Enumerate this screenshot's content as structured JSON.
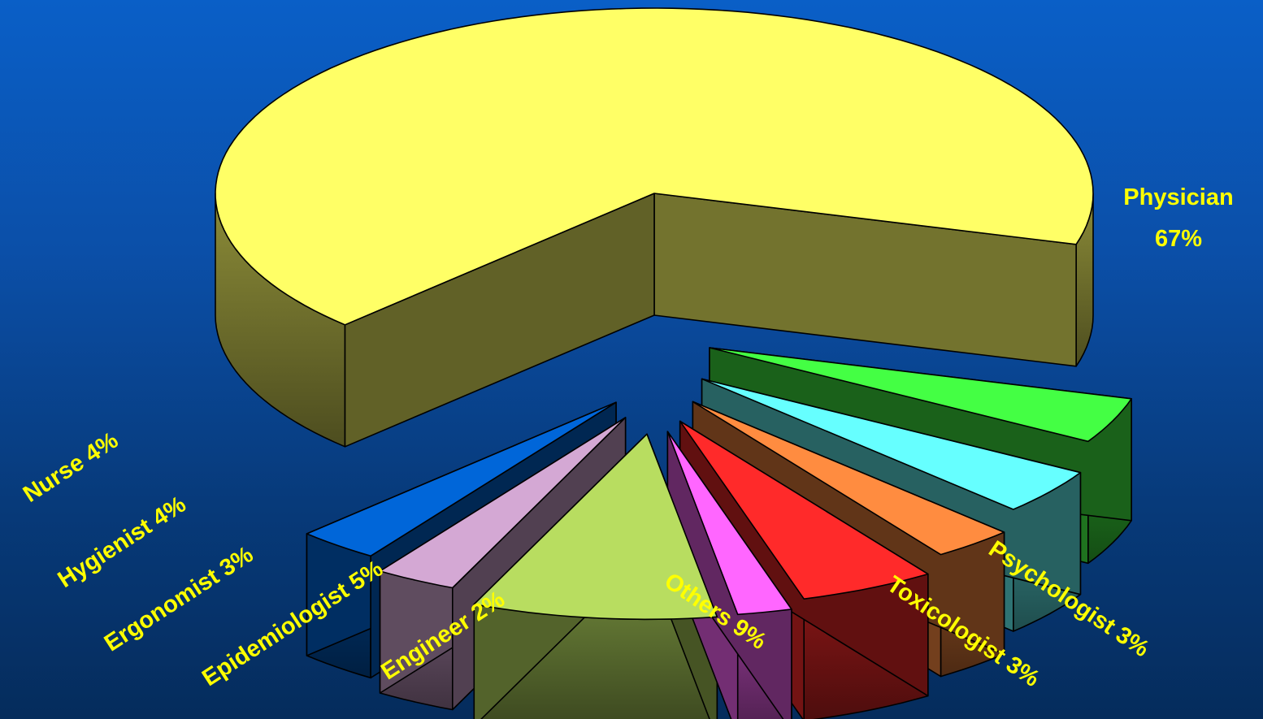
{
  "chart_data": {
    "type": "pie",
    "title": "",
    "exploded": true,
    "three_d": true,
    "slices": [
      {
        "label": "Physician",
        "value": 67,
        "pct_label": "67%",
        "color": "#ffff66"
      },
      {
        "label": "Psychologist",
        "value": 3,
        "pct_label": "3%",
        "color": "#0066d9"
      },
      {
        "label": "Toxicologist",
        "value": 3,
        "pct_label": "3%",
        "color": "#d4a8d4"
      },
      {
        "label": "Others",
        "value": 9,
        "pct_label": "9%",
        "color": "#b8dd60"
      },
      {
        "label": "Engineer",
        "value": 2,
        "pct_label": "2%",
        "color": "#ff66ff"
      },
      {
        "label": "Epidemiologist",
        "value": 5,
        "pct_label": "5%",
        "color": "#ff2a2a"
      },
      {
        "label": "Ergonomist",
        "value": 3,
        "pct_label": "3%",
        "color": "#ff8c40"
      },
      {
        "label": "Hygienist",
        "value": 4,
        "pct_label": "4%",
        "color": "#66ffff"
      },
      {
        "label": "Nurse",
        "value": 4,
        "pct_label": "4%",
        "color": "#44ff44"
      }
    ],
    "label_color": "#ffff00",
    "background_top": "#0a5fc7",
    "background_bottom": "#052c5c"
  }
}
